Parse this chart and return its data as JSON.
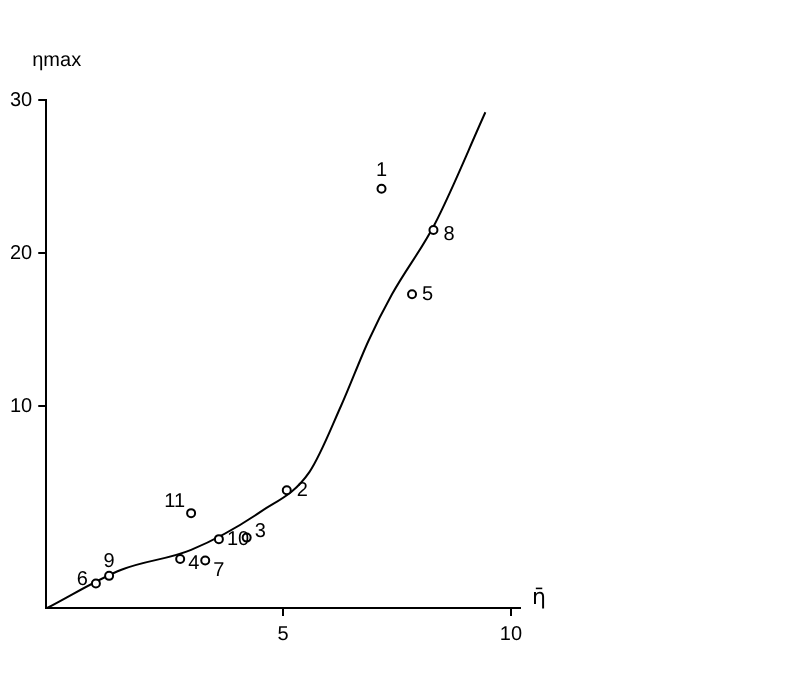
{
  "chart_data": {
    "type": "scatter",
    "xlabel": "η̄",
    "ylabel": "ηmax",
    "xlim": [
      -0.2,
      10.2
    ],
    "ylim": [
      -3.2,
      30
    ],
    "xticks": [
      5,
      10
    ],
    "yticks": [
      10,
      20,
      30
    ],
    "grid": false,
    "legend": false,
    "marker": "circle",
    "series": [
      {
        "color": "#000000",
        "x": [
          7.16,
          5.08,
          4.2,
          2.74,
          7.83,
          0.89,
          3.29,
          8.3,
          1.18,
          3.59,
          2.98
        ],
        "values": [
          24.2,
          4.5,
          1.4,
          0,
          17.3,
          -1.6,
          -0.1,
          21.5,
          -1.1,
          1.3,
          3.0
        ]
      },
      {
        "type": "line",
        "color": "#000000",
        "marker": "none",
        "line_style": "solid",
        "x": [
          -0.18,
          1.45,
          2.98,
          4.51,
          5.58,
          6.27,
          6.88,
          7.39,
          8.33,
          9.44
        ],
        "values": [
          -3.2,
          -0.7,
          0.6,
          3.1,
          5.7,
          10,
          14.3,
          17.3,
          21.9,
          29.2
        ]
      }
    ],
    "annotations": [
      {
        "text": "1",
        "x": 7.16,
        "y": 24.2
      },
      {
        "text": "2",
        "x": 5.08,
        "y": 4.5
      },
      {
        "text": "3",
        "x": 4.2,
        "y": 1.4
      },
      {
        "text": "4",
        "x": 2.74,
        "y": 0
      },
      {
        "text": "5",
        "x": 7.83,
        "y": 17.3
      },
      {
        "text": "6",
        "x": 0.89,
        "y": -1.6
      },
      {
        "text": "7",
        "x": 3.29,
        "y": -0.1
      },
      {
        "text": "8",
        "x": 8.3,
        "y": 21.5
      },
      {
        "text": "9",
        "x": 1.18,
        "y": -1.1
      },
      {
        "text": "10",
        "x": 3.59,
        "y": 1.3
      },
      {
        "text": "11",
        "x": 2.98,
        "y": 3.0
      }
    ]
  }
}
